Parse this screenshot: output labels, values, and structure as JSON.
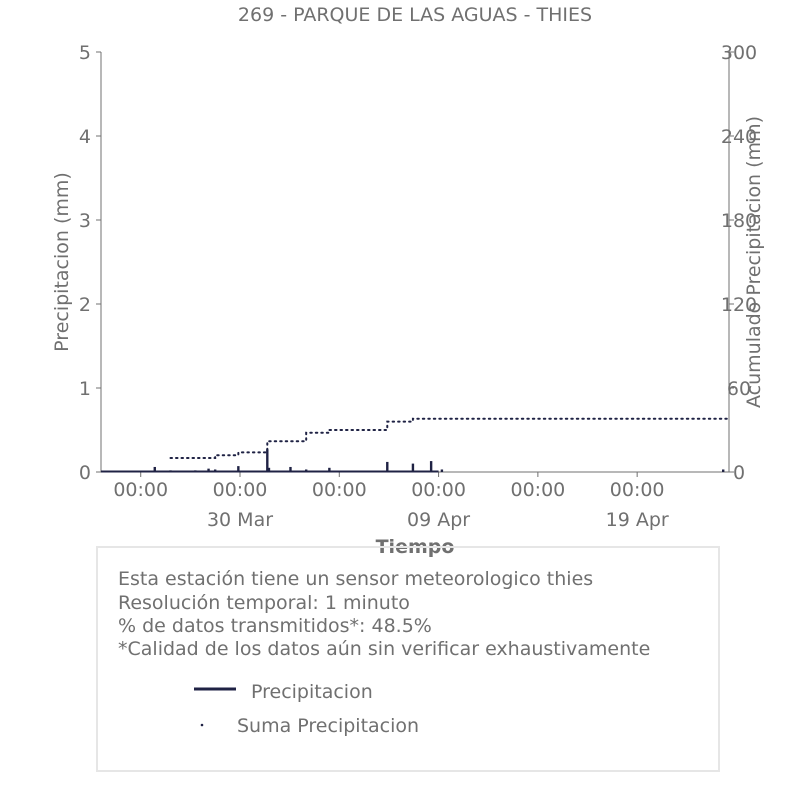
{
  "chart_data": {
    "type": "line",
    "title": "269 - PARQUE DE LAS AGUAS - THIES",
    "xlabel": "Tiempo",
    "ylabel": "Precipitacion (mm)",
    "y2label": "Acumulado Precipitacion (mm)",
    "x_range": [
      "2024-03-23T00:00",
      "2024-04-23T15:00"
    ],
    "ylim": [
      0,
      5
    ],
    "y2lim": [
      0,
      300
    ],
    "yticks": [
      0,
      1,
      2,
      3,
      4,
      5
    ],
    "y2ticks": [
      0,
      60,
      120,
      180,
      240,
      300
    ],
    "xticks": [
      {
        "x": "2024-03-25T00:00",
        "label": "00:00"
      },
      {
        "x": "2024-03-30T00:00",
        "label": "00:00"
      },
      {
        "x": "2024-04-04T00:00",
        "label": "00:00"
      },
      {
        "x": "2024-04-09T00:00",
        "label": "00:00"
      },
      {
        "x": "2024-04-14T00:00",
        "label": "00:00"
      },
      {
        "x": "2024-04-19T00:00",
        "label": "00:00"
      }
    ],
    "xticks_minor": [
      {
        "x": "2024-03-30T00:00",
        "label": "30 Mar"
      },
      {
        "x": "2024-04-09T00:00",
        "label": "09 Apr"
      },
      {
        "x": "2024-04-19T00:00",
        "label": "19 Apr"
      }
    ],
    "grid": false,
    "colors": {
      "precip": "#1f2244",
      "text": "#707070",
      "axis": "#707070"
    },
    "series": [
      {
        "name": "Precipitacion",
        "style": "solid",
        "x": [
          "2024-03-25T17:00",
          "2024-03-26T12:00",
          "2024-03-26T13:00",
          "2024-03-27T18:00",
          "2024-03-28T10:00",
          "2024-03-28T18:00",
          "2024-03-29T22:00",
          "2024-03-31T09:00",
          "2024-03-31T11:00",
          "2024-04-01T13:00",
          "2024-04-02T08:00",
          "2024-04-03T12:00",
          "2024-04-06T10:00",
          "2024-04-07T17:00",
          "2024-04-08T15:00",
          "2024-04-09T04:00",
          "2024-04-23T08:00"
        ],
        "values": [
          0.06,
          0.02,
          0.01,
          0.02,
          0.04,
          0.03,
          0.07,
          0.27,
          0.05,
          0.06,
          0.03,
          0.05,
          0.12,
          0.1,
          0.13,
          0.03,
          0.03
        ]
      },
      {
        "name": "Suma Precipitacion",
        "style": "dotted",
        "axis": "right",
        "x": [
          "2024-03-26T12:00",
          "2024-03-28T18:00",
          "2024-03-29T22:00",
          "2024-03-31T09:00",
          "2024-04-02T08:00",
          "2024-04-03T12:00",
          "2024-04-06T10:00",
          "2024-04-07T17:00",
          "2024-04-23T15:00"
        ],
        "values": [
          10,
          12,
          14,
          22,
          28,
          30,
          36,
          38,
          38
        ]
      }
    ]
  },
  "info": {
    "line1": "Esta estación tiene un sensor meteorologico thies",
    "line2": "Resolución temporal: 1 minuto",
    "line3": "% de datos transmitidos*: 48.5%",
    "line4": "*Calidad de los datos aún sin verificar exhaustivamente"
  },
  "legend": {
    "precip_label": "Precipitacion",
    "sum_label": "Suma Precipitacion"
  }
}
